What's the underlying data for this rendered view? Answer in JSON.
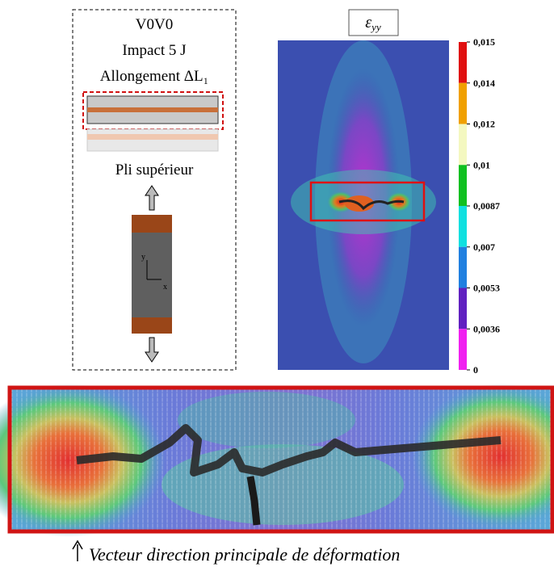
{
  "left_panel": {
    "lines": [
      "V0V0",
      "Impact 5 J",
      "Allongement ΔL₁"
    ],
    "ply_label": "Pli supérieur",
    "axes": {
      "y": "y",
      "x": "x"
    }
  },
  "right_panel": {
    "title": {
      "symbol": "ε",
      "subscript": "yy"
    },
    "colorbar": {
      "labels": [
        "0,015",
        "0,014",
        "0,012",
        "0,01",
        "0,0087",
        "0,007",
        "0,0053",
        "0,0036",
        "0"
      ]
    }
  },
  "bottom_panel": {
    "caption": "Vecteur direction principale de déformation"
  }
}
